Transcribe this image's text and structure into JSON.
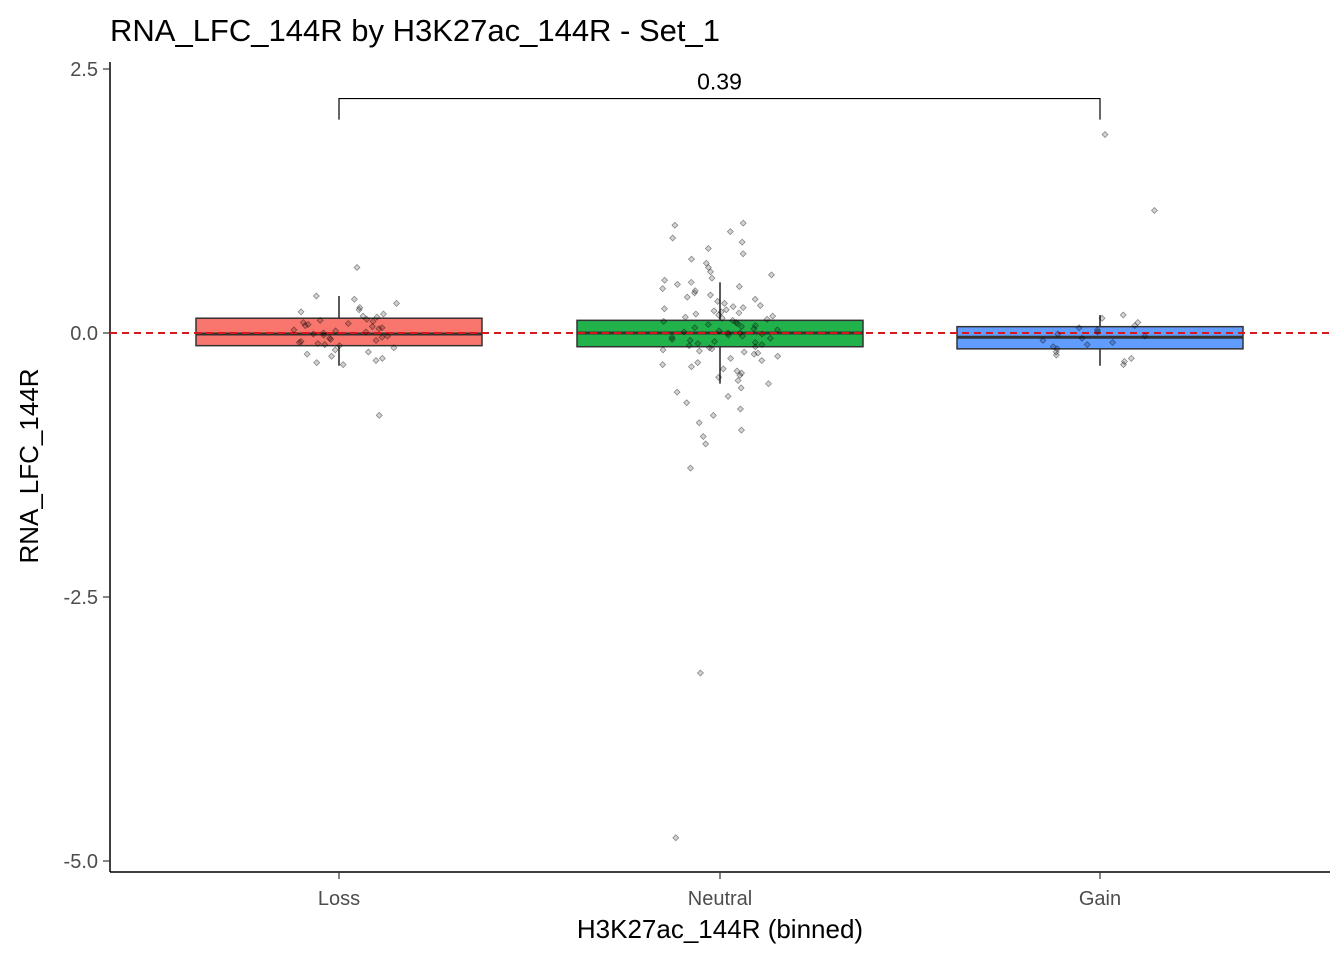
{
  "chart_data": {
    "type": "box",
    "title": "RNA_LFC_144R by H3K27ac_144R - Set_1",
    "xlabel": "H3K27ac_144R (binned)",
    "ylabel": "RNA_LFC_144R",
    "ylim": [
      -5.1,
      2.55
    ],
    "yticks": [
      2.5,
      0.0,
      -2.5,
      -5.0
    ],
    "ytick_labels": [
      "2.5",
      "0.0",
      "-2.5",
      "-5.0"
    ],
    "categories": [
      "Loss",
      "Neutral",
      "Gain"
    ],
    "reference_line": {
      "y": 0.0,
      "color": "#d7191c",
      "style": "dashed"
    },
    "grid": false,
    "legend": "none",
    "groups": [
      {
        "name": "Loss",
        "color": "#f8766d",
        "whisker_low": -0.31,
        "q1": -0.12,
        "median": -0.01,
        "q3": 0.14,
        "whisker_high": 0.35,
        "points": [
          0.62,
          0.35,
          0.32,
          0.28,
          0.24,
          0.22,
          0.2,
          0.18,
          0.16,
          0.15,
          0.13,
          0.12,
          0.11,
          0.1,
          0.09,
          0.08,
          0.07,
          0.06,
          0.05,
          0.04,
          0.03,
          0.02,
          0.01,
          0.0,
          -0.01,
          -0.02,
          -0.03,
          -0.04,
          -0.05,
          -0.06,
          -0.07,
          -0.08,
          -0.09,
          -0.1,
          -0.11,
          -0.12,
          -0.14,
          -0.16,
          -0.18,
          -0.2,
          -0.22,
          -0.24,
          -0.26,
          -0.28,
          -0.3,
          -0.78
        ]
      },
      {
        "name": "Neutral",
        "color": "#22b24c",
        "whisker_low": -0.48,
        "q1": -0.13,
        "median": 0.0,
        "q3": 0.12,
        "whisker_high": 0.48,
        "points": [
          1.04,
          1.02,
          0.96,
          0.9,
          0.86,
          0.8,
          0.75,
          0.7,
          0.66,
          0.62,
          0.58,
          0.55,
          0.52,
          0.5,
          0.48,
          0.46,
          0.44,
          0.42,
          0.4,
          0.38,
          0.36,
          0.34,
          0.32,
          0.3,
          0.28,
          0.26,
          0.25,
          0.24,
          0.23,
          0.22,
          0.21,
          0.2,
          0.19,
          0.18,
          0.17,
          0.16,
          0.15,
          0.14,
          0.13,
          0.12,
          0.11,
          0.1,
          0.09,
          0.08,
          0.07,
          0.06,
          0.05,
          0.04,
          0.03,
          0.02,
          0.01,
          0.0,
          0.0,
          -0.01,
          -0.02,
          -0.03,
          -0.04,
          -0.05,
          -0.06,
          -0.07,
          -0.08,
          -0.09,
          -0.1,
          -0.11,
          -0.12,
          -0.13,
          -0.14,
          -0.15,
          -0.16,
          -0.17,
          -0.18,
          -0.19,
          -0.2,
          -0.22,
          -0.24,
          -0.26,
          -0.28,
          -0.3,
          -0.32,
          -0.34,
          -0.36,
          -0.38,
          -0.4,
          -0.42,
          -0.45,
          -0.48,
          -0.52,
          -0.56,
          -0.6,
          -0.66,
          -0.72,
          -0.78,
          -0.85,
          -0.92,
          -0.98,
          -1.05,
          -1.28,
          -3.22,
          -4.78
        ]
      },
      {
        "name": "Gain",
        "color": "#619cff",
        "whisker_low": -0.31,
        "q1": -0.15,
        "median": -0.04,
        "q3": 0.06,
        "whisker_high": 0.17,
        "points": [
          1.88,
          1.16,
          0.17,
          0.14,
          0.1,
          0.07,
          0.05,
          0.03,
          0.01,
          -0.01,
          -0.03,
          -0.05,
          -0.07,
          -0.09,
          -0.11,
          -0.13,
          -0.15,
          -0.18,
          -0.21,
          -0.24,
          -0.27,
          -0.3
        ]
      }
    ],
    "comparison": {
      "from": "Loss",
      "to": "Gain",
      "label": "0.39",
      "y": 2.22
    }
  }
}
